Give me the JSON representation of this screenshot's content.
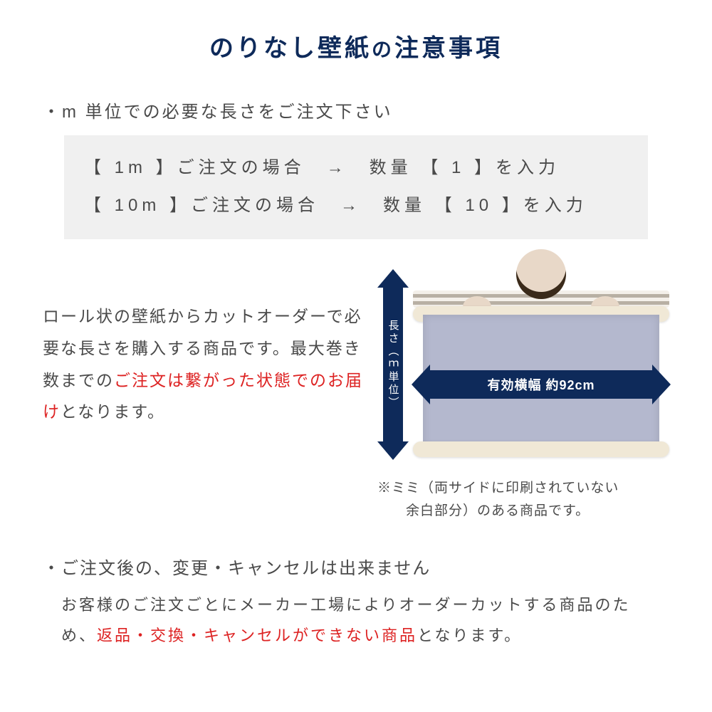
{
  "colors": {
    "title": "#0e2a5a",
    "text": "#4a4a4a",
    "emphasis": "#d22222",
    "arrow_fill": "#0e2a5a",
    "box_bg": "#f0f0f0",
    "sheet_fill": "#b4b8ce",
    "roll_fill": "#f0e8d6",
    "background": "#ffffff"
  },
  "title_main": "のりなし壁紙",
  "title_small": "の",
  "title_tail": "注意事項",
  "bullet1": "・m 単位での必要な長さをご注文下さい",
  "examples": [
    "【 1m 】ご注文の場合　→　数量 【 1 】を入力",
    "【 10m 】ご注文の場合　→　数量 【 10 】を入力"
  ],
  "desc_plain1": "ロール状の壁紙からカットオーダーで必要な長さを購入する商品です。最大巻き数までの",
  "desc_red": "ご注文は繋がった状態でのお届け",
  "desc_plain2": "となります。",
  "v_arrow_label": "長さ︵ｍ単位︶",
  "h_arrow_label": "有効横幅 約92cm",
  "mimi_note_l1": "※ミミ（両サイドに印刷されていない",
  "mimi_note_l2": "　　余白部分）のある商品です。",
  "bullet2": "・ご注文後の、変更・キャンセルは出来ません",
  "policy_plain1": "お客様のご注文ごとにメーカー工場によりオーダーカットする商品のため、",
  "policy_red": "返品・交換・キャンセルができない商品",
  "policy_plain2": "となります。"
}
